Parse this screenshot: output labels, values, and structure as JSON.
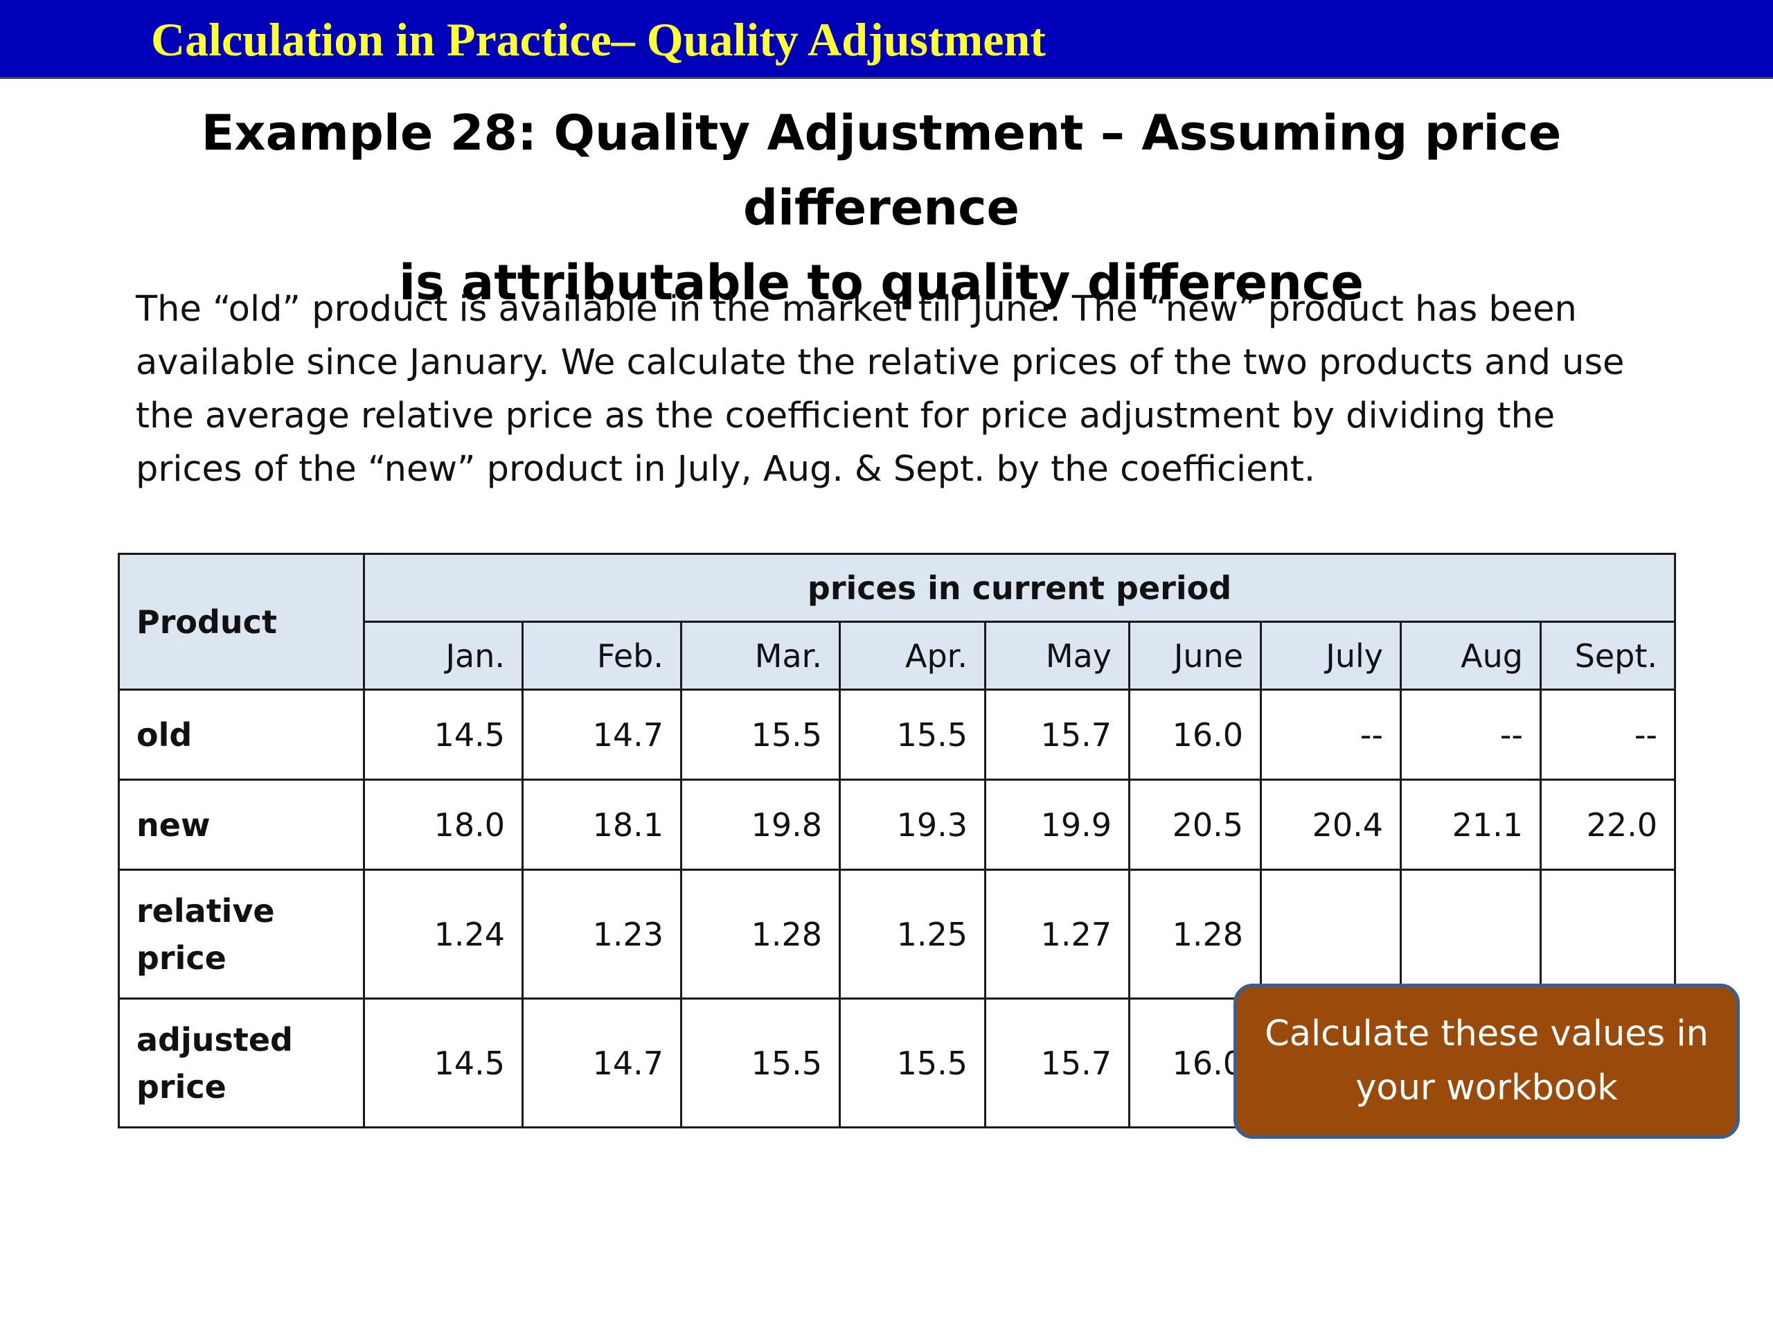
{
  "banner": {
    "title": "Calculation in Practice– Quality Adjustment"
  },
  "heading": {
    "line1": "Example 28: Quality Adjustment – Assuming price difference",
    "line2": "is attributable to quality difference"
  },
  "body": {
    "lines": [
      "The “old” product is available in the market till June. The “new” product has been",
      "available since January. We calculate the relative prices of the two products and use",
      "the average relative price as the coefficient for price adjustment by dividing the",
      "prices of the “new” product in July, Aug. & Sept. by the coefficient."
    ]
  },
  "table": {
    "product_header": "Product",
    "group_header": "prices in current period",
    "months": [
      "Jan.",
      "Feb.",
      "Mar.",
      "Apr.",
      "May",
      "June",
      "July",
      "Aug",
      "Sept."
    ],
    "rows": [
      {
        "label": "old",
        "values": [
          "14.5",
          "14.7",
          "15.5",
          "15.5",
          "15.7",
          "16.0",
          "--",
          "--",
          "--"
        ]
      },
      {
        "label": "new",
        "values": [
          "18.0",
          "18.1",
          "19.8",
          "19.3",
          "19.9",
          "20.5",
          "20.4",
          "21.1",
          "22.0"
        ]
      },
      {
        "label_line1": "relative",
        "label_line2": "price",
        "values": [
          "1.24",
          "1.23",
          "1.28",
          "1.25",
          "1.27",
          "1.28",
          "",
          "",
          ""
        ]
      },
      {
        "label_line1": "adjusted",
        "label_line2": "price",
        "values": [
          "14.5",
          "14.7",
          "15.5",
          "15.5",
          "15.7",
          "16.0",
          "",
          "",
          ""
        ]
      }
    ]
  },
  "callout": {
    "text": "Calculate these values in your workbook"
  },
  "colors": {
    "banner_bg": "#0000b8",
    "banner_text": "#ffff33",
    "table_header_bg": "#dce6f1",
    "callout_bg": "#9a4a0a",
    "callout_border": "#3a5f8e"
  }
}
